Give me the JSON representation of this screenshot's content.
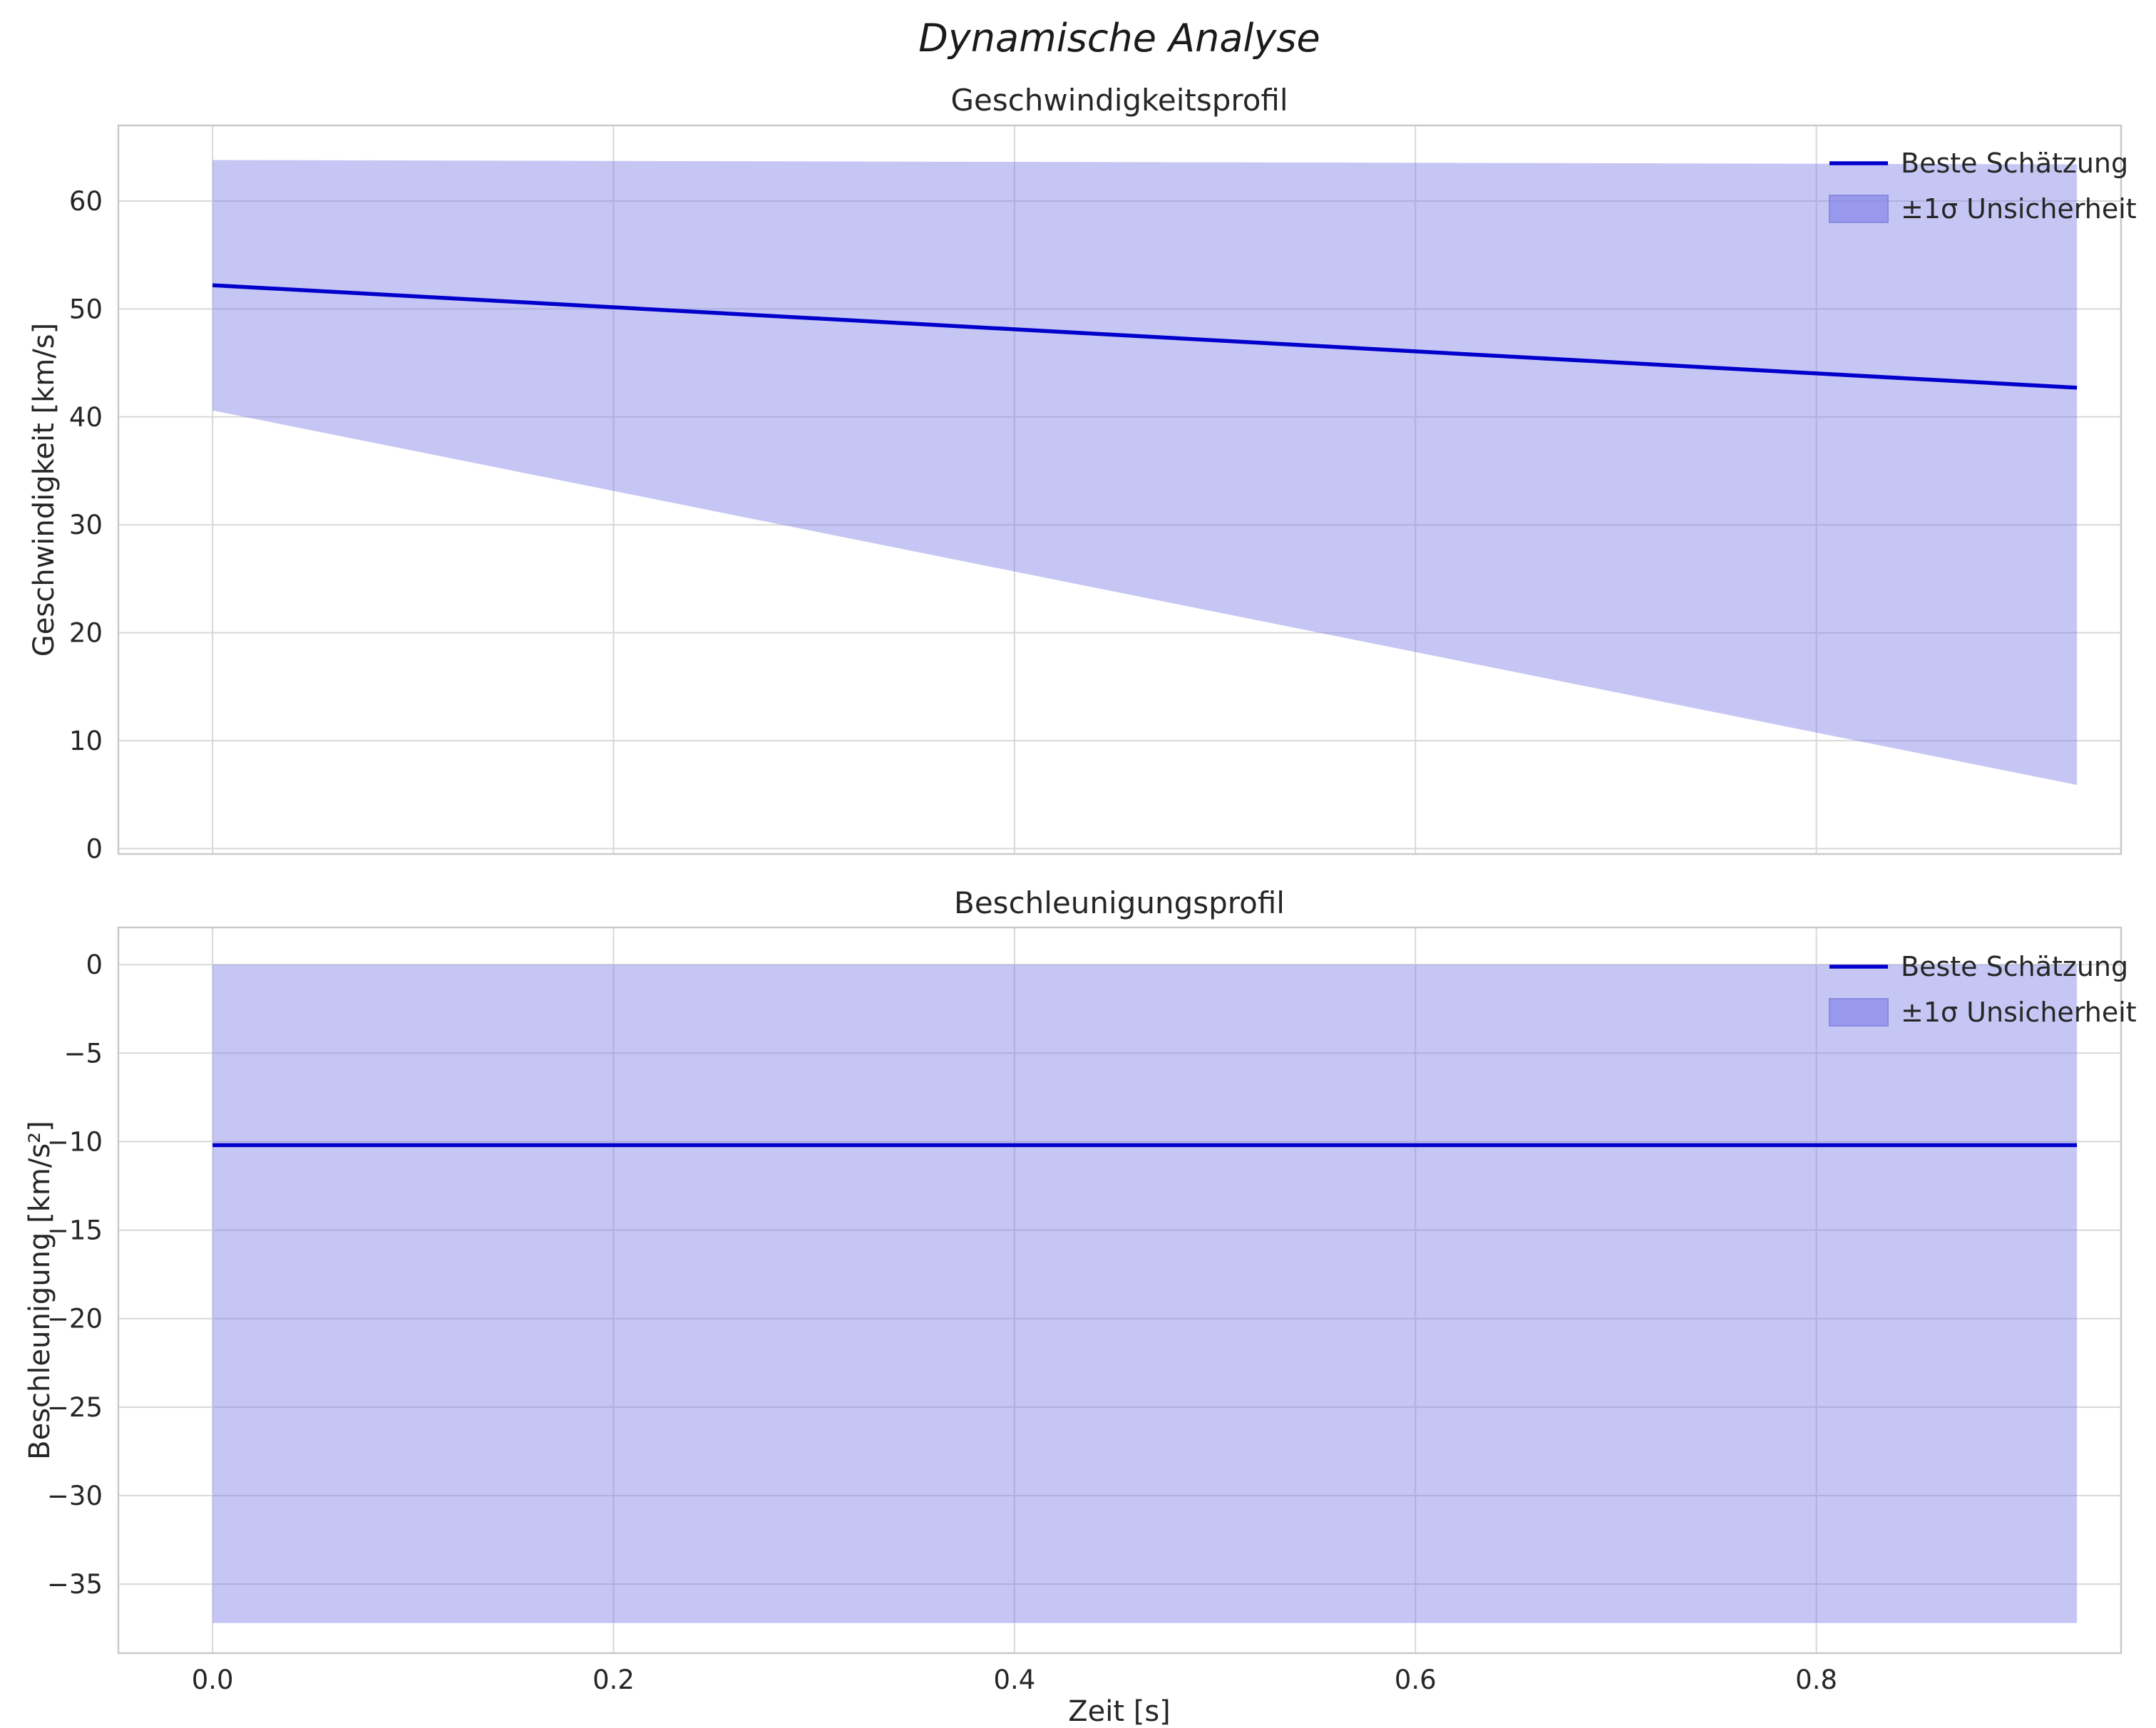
{
  "figure": {
    "title": "Dynamische Analyse",
    "xlabel": "Zeit [s]"
  },
  "colors": {
    "line": "#0000cc",
    "band": "#8080e8",
    "band_opacity": 0.45,
    "swatch_opacity": 0.65,
    "swatch_border": "#8a8ae0",
    "grid": "#d8d8d8",
    "spine": "#c9c9c9",
    "text": "#262626"
  },
  "chart_data": [
    {
      "type": "line",
      "title": "Geschwindigkeitsprofil",
      "ylabel": "Geschwindigkeit [km/s]",
      "x": [
        0.0,
        0.93
      ],
      "best_estimate": [
        52.2,
        42.7
      ],
      "band_upper": [
        63.8,
        63.4
      ],
      "band_lower": [
        40.6,
        5.9
      ],
      "xlim": [
        -0.047,
        0.952
      ],
      "ylim": [
        -0.5,
        67.0
      ],
      "yticks": [
        0,
        10,
        20,
        30,
        40,
        50,
        60
      ],
      "xticks": [
        0.0,
        0.2,
        0.4,
        0.6,
        0.8
      ],
      "show_x_tick_labels": false,
      "grid": true,
      "legend_position": "upper right",
      "legend": [
        "Beste Schätzung",
        "±1σ Unsicherheit"
      ]
    },
    {
      "type": "line",
      "title": "Beschleunigungsprofil",
      "ylabel": "Beschleunigung [km/s²]",
      "x": [
        0.0,
        0.93
      ],
      "best_estimate": [
        -10.2,
        -10.2
      ],
      "band_upper": [
        0.0,
        0.0
      ],
      "band_lower": [
        -37.2,
        -37.2
      ],
      "xlim": [
        -0.047,
        0.952
      ],
      "ylim": [
        -38.9,
        2.1
      ],
      "yticks": [
        0,
        -5,
        -10,
        -15,
        -20,
        -25,
        -30,
        -35
      ],
      "xticks": [
        0.0,
        0.2,
        0.4,
        0.6,
        0.8
      ],
      "show_x_tick_labels": true,
      "grid": true,
      "legend_position": "upper right",
      "legend": [
        "Beste Schätzung",
        "±1σ Unsicherheit"
      ]
    }
  ]
}
